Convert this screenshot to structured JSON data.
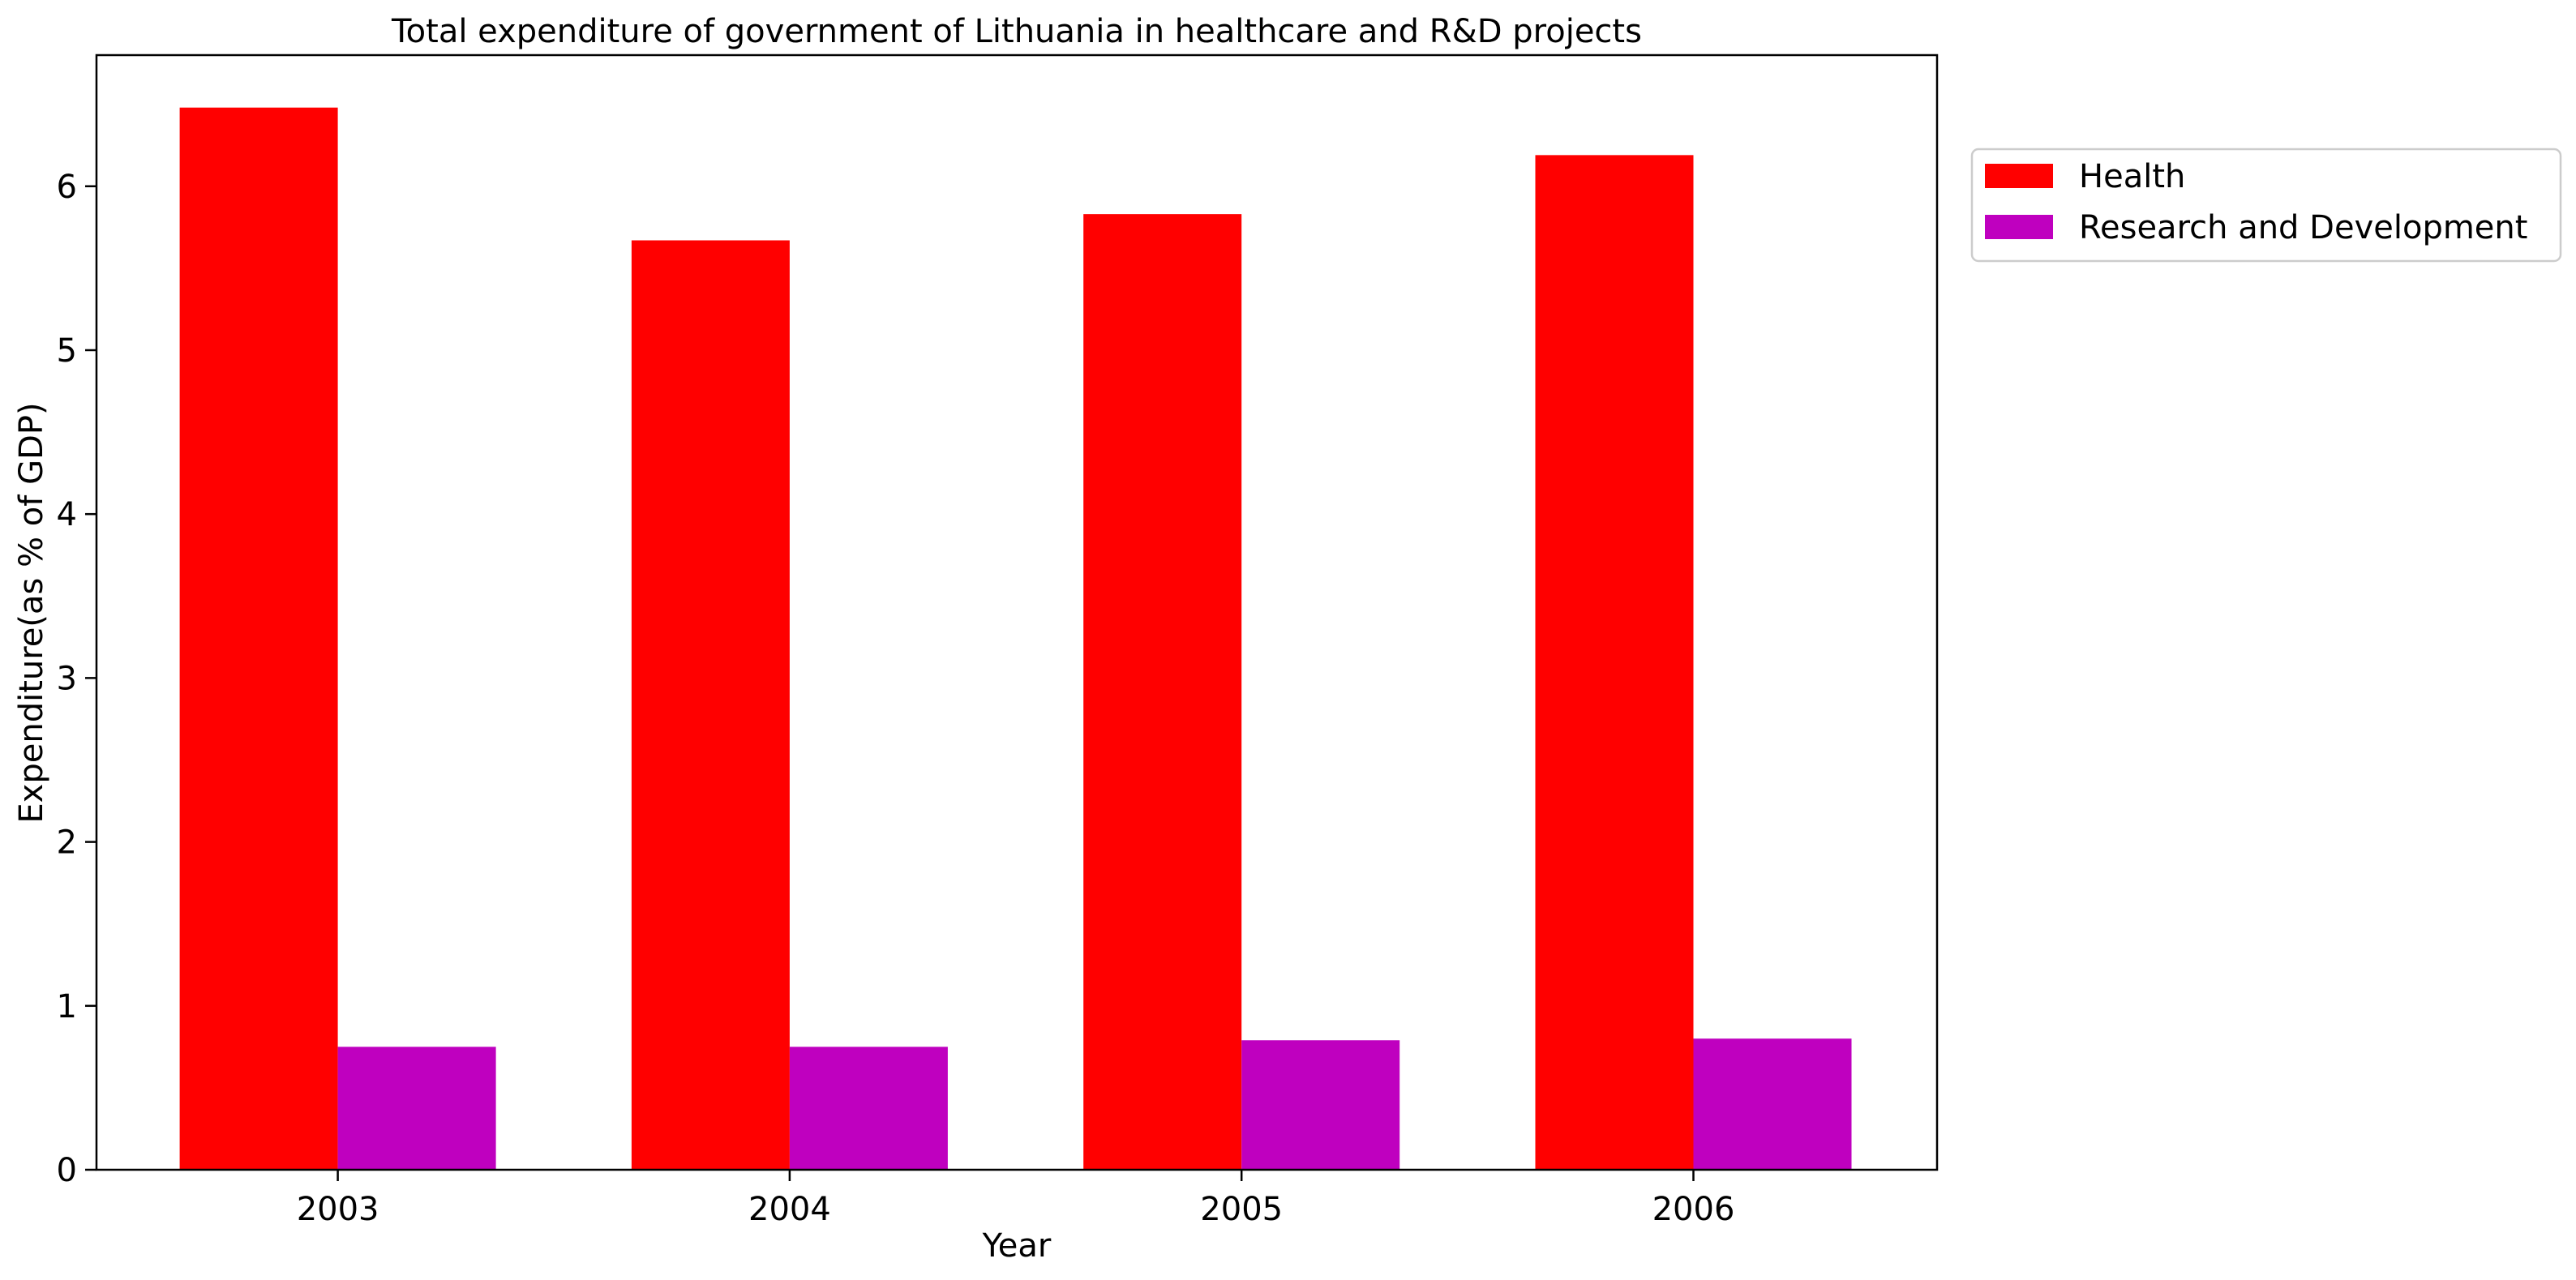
{
  "chart_data": {
    "type": "bar",
    "title": "Total expenditure of government of Lithuania in healthcare and R&D projects",
    "xlabel": "Year",
    "ylabel": "Expenditure(as % of GDP)",
    "categories": [
      "2003",
      "2004",
      "2005",
      "2006"
    ],
    "series": [
      {
        "name": "Health",
        "values": [
          6.48,
          5.67,
          5.83,
          6.19
        ],
        "color": "#ff0000"
      },
      {
        "name": "Research and Development",
        "values": [
          0.75,
          0.75,
          0.79,
          0.8
        ],
        "color": "#bf00bf"
      }
    ],
    "ylim": [
      0,
      6.8
    ],
    "yticks": [
      "0",
      "1",
      "2",
      "3",
      "4",
      "5",
      "6"
    ],
    "grid": false,
    "legend_position": "outside-right-top"
  }
}
